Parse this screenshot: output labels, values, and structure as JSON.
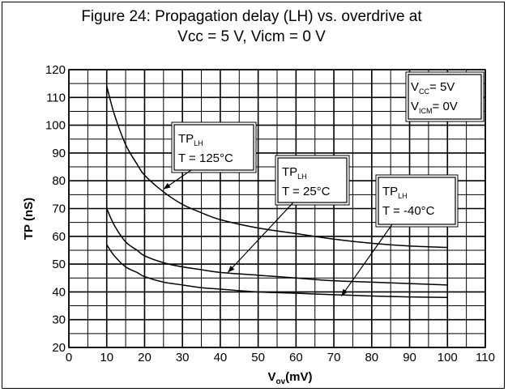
{
  "figure": {
    "title_line1": "Figure 24: Propagation delay (LH) vs. overdrive at",
    "title_line2": "Vcc = 5 V, Vicm = 0 V"
  },
  "chart_data": {
    "type": "line",
    "title": "Figure 24: Propagation delay (LH) vs. overdrive at Vcc = 5 V, Vicm = 0 V",
    "xlabel": {
      "main": "V",
      "sub": "ov",
      "rest": "(mV)"
    },
    "ylabel": "TP (nS)",
    "xlim": [
      0,
      110
    ],
    "ylim": [
      20,
      120
    ],
    "xticks": [
      0,
      10,
      20,
      30,
      40,
      50,
      60,
      70,
      80,
      90,
      100,
      110
    ],
    "yticks": [
      20,
      30,
      40,
      50,
      60,
      70,
      80,
      90,
      100,
      110,
      120
    ],
    "grid": true,
    "conditions_box": [
      {
        "main": "V",
        "sub": "CC",
        "rest": "= 5V"
      },
      {
        "main": "V",
        "sub": "ICM",
        "rest": "= 0V"
      }
    ],
    "series": [
      {
        "label_main": "TP",
        "label_sub": "LH",
        "label_temp": "T = 125°C",
        "x": [
          10,
          12,
          15,
          18,
          20,
          25,
          30,
          35,
          40,
          50,
          60,
          70,
          80,
          90,
          100
        ],
        "values": [
          114,
          104,
          93,
          86,
          82,
          76,
          71.5,
          68.5,
          66,
          63,
          61,
          59,
          57.5,
          56.5,
          56
        ]
      },
      {
        "label_main": "TP",
        "label_sub": "LH",
        "label_temp": "T = 25°C",
        "x": [
          10,
          12,
          15,
          18,
          20,
          25,
          30,
          35,
          40,
          50,
          60,
          70,
          80,
          90,
          100
        ],
        "values": [
          70,
          64,
          58,
          55,
          53,
          50.5,
          49,
          48,
          47,
          46,
          45,
          44,
          43.5,
          43,
          42.5
        ]
      },
      {
        "label_main": "TP",
        "label_sub": "LH",
        "label_temp": "T = -40°C",
        "x": [
          10,
          12,
          15,
          18,
          20,
          25,
          30,
          35,
          40,
          50,
          60,
          70,
          80,
          90,
          100
        ],
        "values": [
          57,
          53,
          49,
          47,
          45.5,
          43.5,
          42.5,
          41.5,
          41,
          40,
          39.5,
          39,
          38.5,
          38.2,
          38
        ]
      }
    ]
  }
}
